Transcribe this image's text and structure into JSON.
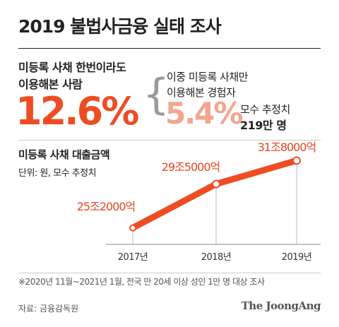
{
  "title": "2019 불법사금융 실태 조사",
  "summary": {
    "label_line1": "미등록 사채 한번이라도",
    "label_line2": "이용해본 사람",
    "percent": "12.6%",
    "brace": "{",
    "only_line1": "이중 미등록 사채만",
    "only_line2": "이용해본 경험자",
    "only_percent": "5.4%",
    "estimate_label": "모수 추정치",
    "estimate_value": "219만 명"
  },
  "chart_data": {
    "type": "line",
    "title": "미등록 사채 대출금액",
    "unit": "단위: 원, 모수 추정치",
    "categories": [
      "2017년",
      "2018년",
      "2019년"
    ],
    "values": [
      252000,
      295000,
      318000
    ],
    "value_labels": [
      "25조2000억",
      "29조5000억",
      "31조8000억"
    ],
    "xlabel": "",
    "ylabel": "",
    "grid": false,
    "line_color": "#ee4d24",
    "label_color": "#e8461f"
  },
  "footnote": "※2020년 11월~2021년 1월, 전국 만 20세 이상 성인 1만 명 대상 조사",
  "source": "자료: 금융감독원",
  "brand": "The JoongAng"
}
